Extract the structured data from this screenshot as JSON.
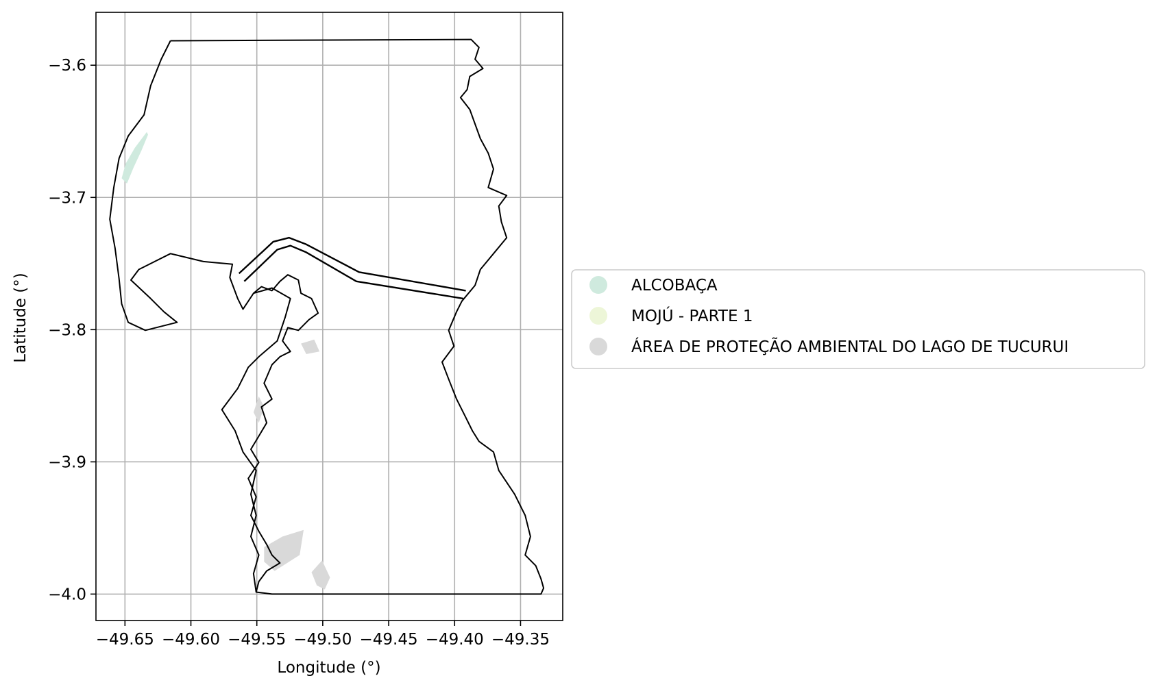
{
  "chart_data": {
    "type": "map",
    "xlabel": "Longitude (°)",
    "ylabel": "Latitude (°)",
    "xlim": [
      -49.672,
      -49.318
    ],
    "ylim": [
      -4.02,
      -3.56
    ],
    "grid": true,
    "x_ticks": [
      {
        "value": -49.65,
        "label": "−49.65"
      },
      {
        "value": -49.6,
        "label": "−49.60"
      },
      {
        "value": -49.55,
        "label": "−49.55"
      },
      {
        "value": -49.5,
        "label": "−49.50"
      },
      {
        "value": -49.45,
        "label": "−49.45"
      },
      {
        "value": -49.4,
        "label": "−49.40"
      },
      {
        "value": -49.35,
        "label": "−49.35"
      }
    ],
    "y_ticks": [
      {
        "value": -3.6,
        "label": "−3.6"
      },
      {
        "value": -3.7,
        "label": "−3.7"
      },
      {
        "value": -3.8,
        "label": "−3.8"
      },
      {
        "value": -3.9,
        "label": "−3.9"
      },
      {
        "value": -4.0,
        "label": "−4.0"
      }
    ],
    "legend_position": "right",
    "legend": [
      {
        "name": "ALCOBAÇA",
        "color": "#cfeade"
      },
      {
        "name": "MOJÚ - PARTE 1",
        "color": "#edf6d8"
      },
      {
        "name": "ÁREA DE PROTEÇÃO AMBIENTAL DO LAGO DE TUCURUI",
        "color": "#d9d9d9"
      }
    ],
    "boundary_outline": [
      [
        -49.6155,
        -3.5815
      ],
      [
        -49.3875,
        -3.5805
      ],
      [
        -49.3815,
        -3.5865
      ],
      [
        -49.3845,
        -3.5955
      ],
      [
        -49.3785,
        -3.6025
      ],
      [
        -49.3885,
        -3.6085
      ],
      [
        -49.3905,
        -3.6185
      ],
      [
        -49.3955,
        -3.6245
      ],
      [
        -49.3885,
        -3.6335
      ],
      [
        -49.3845,
        -3.6445
      ],
      [
        -49.3805,
        -3.6555
      ],
      [
        -49.3745,
        -3.6665
      ],
      [
        -49.3705,
        -3.6785
      ],
      [
        -49.3745,
        -3.6925
      ],
      [
        -49.3605,
        -3.6985
      ],
      [
        -49.3665,
        -3.7065
      ],
      [
        -49.3645,
        -3.7185
      ],
      [
        -49.3605,
        -3.7305
      ],
      [
        -49.3705,
        -3.7425
      ],
      [
        -49.3805,
        -3.7545
      ],
      [
        -49.3845,
        -3.7665
      ],
      [
        -49.3945,
        -3.7785
      ],
      [
        -49.3985,
        -3.7865
      ],
      [
        -49.4045,
        -3.8005
      ],
      [
        -49.4005,
        -3.8125
      ],
      [
        -49.4095,
        -3.8245
      ],
      [
        -49.4045,
        -3.8375
      ],
      [
        -49.3985,
        -3.8525
      ],
      [
        -49.3925,
        -3.8645
      ],
      [
        -49.3865,
        -3.8765
      ],
      [
        -49.3815,
        -3.8845
      ],
      [
        -49.3705,
        -3.8925
      ],
      [
        -49.3665,
        -3.9065
      ],
      [
        -49.3545,
        -3.9245
      ],
      [
        -49.3465,
        -3.9405
      ],
      [
        -49.3425,
        -3.9565
      ],
      [
        -49.3465,
        -3.9705
      ],
      [
        -49.3385,
        -3.9785
      ],
      [
        -49.3345,
        -3.9885
      ],
      [
        -49.3325,
        -3.9955
      ],
      [
        -49.3345,
        -4.0
      ],
      [
        -49.5385,
        -4.0
      ],
      [
        -49.5505,
        -3.9985
      ],
      [
        -49.5525,
        -3.9845
      ],
      [
        -49.5485,
        -3.9705
      ],
      [
        -49.5545,
        -3.9565
      ],
      [
        -49.5505,
        -3.9405
      ],
      [
        -49.5545,
        -3.9245
      ],
      [
        -49.5505,
        -3.9065
      ],
      [
        -49.5605,
        -3.8925
      ],
      [
        -49.5665,
        -3.8765
      ],
      [
        -49.5765,
        -3.8605
      ],
      [
        -49.5645,
        -3.8445
      ],
      [
        -49.5565,
        -3.8285
      ],
      [
        -49.5485,
        -3.8205
      ],
      [
        -49.5345,
        -3.8085
      ],
      [
        -49.5285,
        -3.7905
      ],
      [
        -49.5245,
        -3.7765
      ],
      [
        -49.5385,
        -3.7685
      ],
      [
        -49.5525,
        -3.7725
      ],
      [
        -49.5605,
        -3.7845
      ],
      [
        -49.5645,
        -3.7765
      ],
      [
        -49.5705,
        -3.7605
      ],
      [
        -49.5685,
        -3.7505
      ],
      [
        -49.5905,
        -3.7485
      ],
      [
        -49.6155,
        -3.7425
      ],
      [
        -49.6395,
        -3.7545
      ],
      [
        -49.6455,
        -3.7625
      ],
      [
        -49.6305,
        -3.7765
      ],
      [
        -49.6205,
        -3.7865
      ],
      [
        -49.6105,
        -3.7945
      ],
      [
        -49.6345,
        -3.8005
      ],
      [
        -49.6475,
        -3.7945
      ],
      [
        -49.6525,
        -3.7805
      ],
      [
        -49.6545,
        -3.7615
      ],
      [
        -49.6575,
        -3.7385
      ],
      [
        -49.6615,
        -3.7165
      ],
      [
        -49.6585,
        -3.6925
      ],
      [
        -49.6545,
        -3.6705
      ],
      [
        -49.6475,
        -3.6535
      ],
      [
        -49.6355,
        -3.6375
      ],
      [
        -49.6305,
        -3.6155
      ],
      [
        -49.6225,
        -3.5955
      ],
      [
        -49.6155,
        -3.5815
      ]
    ],
    "corridor_north_edge": [
      [
        -49.5635,
        -3.7575
      ],
      [
        -49.5375,
        -3.7335
      ],
      [
        -49.5255,
        -3.7305
      ],
      [
        -49.5125,
        -3.7355
      ],
      [
        -49.4725,
        -3.7565
      ],
      [
        -49.3915,
        -3.7705
      ]
    ],
    "corridor_south_edge": [
      [
        -49.5595,
        -3.7635
      ],
      [
        -49.5345,
        -3.7395
      ],
      [
        -49.5245,
        -3.7365
      ],
      [
        -49.5125,
        -3.7415
      ],
      [
        -49.4745,
        -3.7635
      ],
      [
        -49.3935,
        -3.7765
      ]
    ],
    "reservoir_shore": [
      [
        -49.5525,
        -3.7725
      ],
      [
        -49.5465,
        -3.7675
      ],
      [
        -49.5385,
        -3.7705
      ],
      [
        -49.5325,
        -3.7635
      ],
      [
        -49.5265,
        -3.7585
      ],
      [
        -49.5185,
        -3.7625
      ],
      [
        -49.5165,
        -3.7725
      ],
      [
        -49.5085,
        -3.7765
      ],
      [
        -49.5035,
        -3.7875
      ],
      [
        -49.5105,
        -3.7925
      ],
      [
        -49.5185,
        -3.8005
      ],
      [
        -49.5265,
        -3.7985
      ],
      [
        -49.5305,
        -3.8085
      ],
      [
        -49.5245,
        -3.8165
      ],
      [
        -49.5325,
        -3.8205
      ],
      [
        -49.5385,
        -3.8265
      ],
      [
        -49.5445,
        -3.8405
      ],
      [
        -49.5385,
        -3.8525
      ],
      [
        -49.5465,
        -3.8585
      ],
      [
        -49.5425,
        -3.8705
      ],
      [
        -49.5485,
        -3.8805
      ],
      [
        -49.5545,
        -3.8905
      ],
      [
        -49.5485,
        -3.9005
      ],
      [
        -49.5565,
        -3.9125
      ],
      [
        -49.5505,
        -3.9265
      ],
      [
        -49.5545,
        -3.9405
      ],
      [
        -49.5485,
        -3.9525
      ],
      [
        -49.5425,
        -3.9625
      ],
      [
        -49.5385,
        -3.9705
      ],
      [
        -49.5325,
        -3.9765
      ],
      [
        -49.5425,
        -3.9825
      ],
      [
        -49.5485,
        -3.9905
      ],
      [
        -49.5505,
        -3.9985
      ]
    ],
    "shaded_alcobaca": [
      [
        -49.6335,
        -3.6505
      ],
      [
        -49.6425,
        -3.6625
      ],
      [
        -49.6495,
        -3.6745
      ],
      [
        -49.6525,
        -3.6855
      ],
      [
        -49.6485,
        -3.6895
      ],
      [
        -49.6435,
        -3.6775
      ],
      [
        -49.6375,
        -3.6645
      ],
      [
        -49.6325,
        -3.6525
      ]
    ],
    "shaded_apa": [
      [
        [
          -49.5165,
          -3.8105
        ],
        [
          -49.5065,
          -3.8075
        ],
        [
          -49.5025,
          -3.8165
        ],
        [
          -49.5125,
          -3.8185
        ]
      ],
      [
        [
          -49.5445,
          -3.9645
        ],
        [
          -49.5305,
          -3.9565
        ],
        [
          -49.5145,
          -3.9515
        ],
        [
          -49.5175,
          -3.9705
        ],
        [
          -49.5365,
          -3.9825
        ],
        [
          -49.5445,
          -3.9755
        ]
      ],
      [
        [
          -49.5085,
          -3.9835
        ],
        [
          -49.5005,
          -3.9745
        ],
        [
          -49.4945,
          -3.9875
        ],
        [
          -49.4985,
          -3.9965
        ],
        [
          -49.5045,
          -3.9935
        ]
      ],
      [
        [
          -49.5525,
          -3.8625
        ],
        [
          -49.5485,
          -3.8505
        ],
        [
          -49.5445,
          -3.8585
        ],
        [
          -49.5485,
          -3.8705
        ]
      ]
    ]
  }
}
